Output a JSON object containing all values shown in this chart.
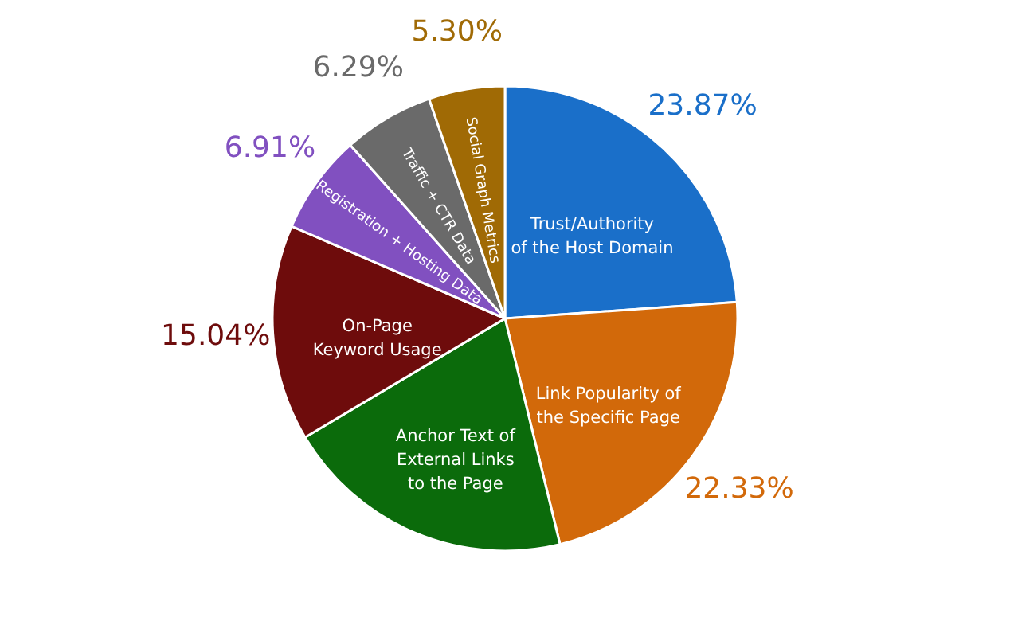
{
  "chart_data": {
    "type": "pie",
    "categories": [
      "Trust/Authority of the Host Domain",
      "Link Popularity of the Specific Page",
      "Anchor Text of External Links to the Page",
      "On-Page Keyword Usage",
      "Registration + Hosting Data",
      "Traffic + CTR Data",
      "Social Graph Metrics"
    ],
    "values": [
      23.87,
      22.33,
      20.26,
      15.04,
      6.91,
      6.29,
      5.3
    ],
    "value_labels": [
      "23.87%",
      "22.33%",
      null,
      "15.04%",
      "6.91%",
      "6.29%",
      "5.30%"
    ],
    "colors": [
      "#1a6fc9",
      "#d2690a",
      "#0b6b0b",
      "#6e0c0c",
      "#8150c0",
      "#6a6a6a",
      "#a06a05"
    ]
  }
}
